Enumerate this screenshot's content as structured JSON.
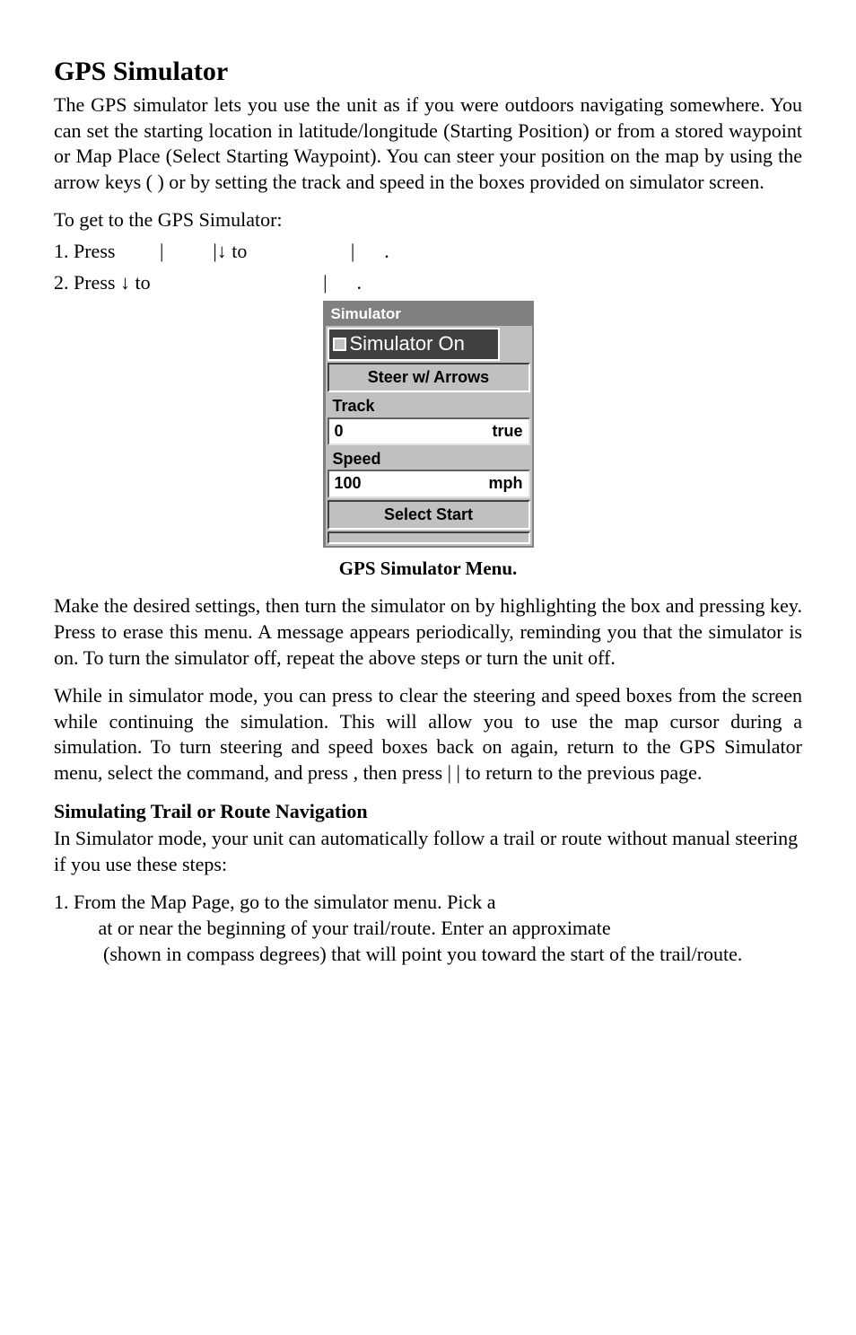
{
  "title": "GPS Simulator",
  "intro": "The GPS simulator lets you use the unit as if you were outdoors navigating somewhere. You can set the starting location in latitude/longitude (Starting Position) or from a stored waypoint or Map Place (Select Starting Waypoint). You can steer your position on the map by using the arrow keys (                             ) or by setting the track and speed in the boxes provided on simulator screen.",
  "to_get_line": "To get to the GPS Simulator:",
  "step1_a": "1. Press ",
  "step1_b": " to ",
  "step2_a": "2. Press ",
  "step2_b": " to ",
  "sim_menu": {
    "titlebar": "Simulator",
    "checkbox_label": "Simulator On",
    "steer_button": "Steer w/ Arrows",
    "track_label": "Track",
    "track_value": "0",
    "track_unit": "true",
    "speed_label": "Speed",
    "speed_value": "100",
    "speed_unit": "mph",
    "select_start": "Select Start"
  },
  "caption": "GPS Simulator Menu.",
  "para_make": "Make the desired settings, then turn the simulator on by highlighting the                         box and pressing           key. Press           to erase this menu. A message appears periodically, reminding you that the simulator is on. To turn the simulator off, repeat the above steps or turn the unit off.",
  "para_while": "While in simulator mode, you can press            to clear the steering and speed boxes from the screen while continuing the simulation. This will allow you to use the map cursor during a simulation. To turn steering and speed boxes back on again, return to the GPS Simulator menu, select  the                                  command,  and  press         ,  then  press           |        |           to return to the previous page.",
  "subhead": "Simulating Trail or Route Navigation",
  "para_sub": "In Simulator mode, your unit can automatically follow a trail or route without manual steering if you use these steps:",
  "step_map_a": "1. From the Map Page, go to the simulator menu. Pick a ",
  "step_map_b": " at or near the beginning of your trail/route. Enter an approximate ",
  "step_map_c": " (shown in compass degrees) that will point you toward the start of the trail/route."
}
